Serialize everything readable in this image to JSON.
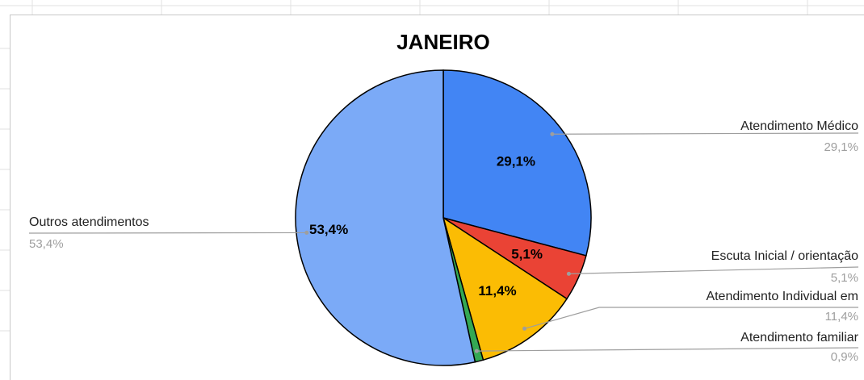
{
  "chart_data": {
    "type": "pie",
    "title": "JANEIRO",
    "categories": [
      "Atendimento Médico",
      "Escuta Inicial / orientação",
      "Atendimento Individual em",
      "Atendimento familiar",
      "Outros atendimentos"
    ],
    "values": [
      29.1,
      5.1,
      11.4,
      0.9,
      53.4
    ],
    "value_labels": [
      "29,1%",
      "5,1%",
      "11,4%",
      "0,9%",
      "53,4%"
    ],
    "colors": [
      "#4285f4",
      "#ea4335",
      "#fbbc04",
      "#34a853",
      "#7baaf7"
    ]
  }
}
